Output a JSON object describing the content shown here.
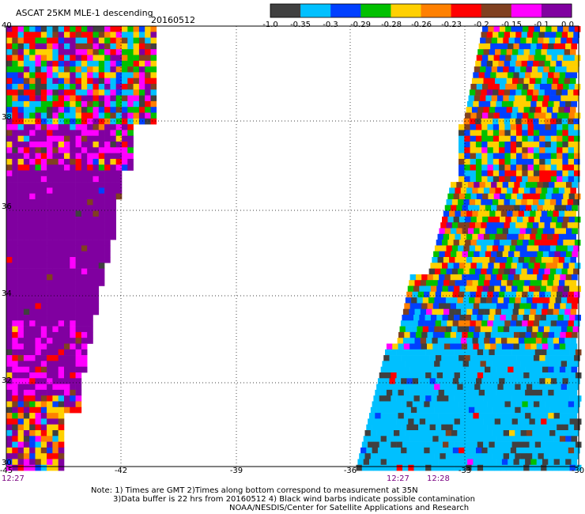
{
  "header": {
    "title": "ASCAT 25KM MLE-1 descending",
    "date": "20160512"
  },
  "colorbar": {
    "colors": [
      "#404040",
      "#00c0ff",
      "#0040ff",
      "#00c000",
      "#ffd000",
      "#ff8000",
      "#ff0000",
      "#804020",
      "#ff00ff",
      "#8000a0"
    ],
    "labels": [
      "-1.0",
      "-0.35",
      "-0.3",
      "-0.29",
      "-0.28",
      "-0.26",
      "-0.23",
      "-0.2",
      "-0.15",
      "-0.1",
      "0.0"
    ]
  },
  "map": {
    "lon_labels": [
      "-45",
      "-42",
      "-39",
      "-36",
      "-33",
      "-30"
    ],
    "lat_labels": [
      "40",
      "38",
      "36",
      "34",
      "32",
      "30"
    ],
    "time_labels": [
      "12:27",
      "12:27",
      "12:28"
    ]
  },
  "notes": [
    "Note: 1) Times are GMT 2)Times along bottom correspond to measurement at 35N",
    "3)Data buffer is 22 hrs from 20160512 4) Black wind barbs indicate possible contamination",
    "NOAA/NESDIS/Center for Satellite Applications and Research"
  ]
}
